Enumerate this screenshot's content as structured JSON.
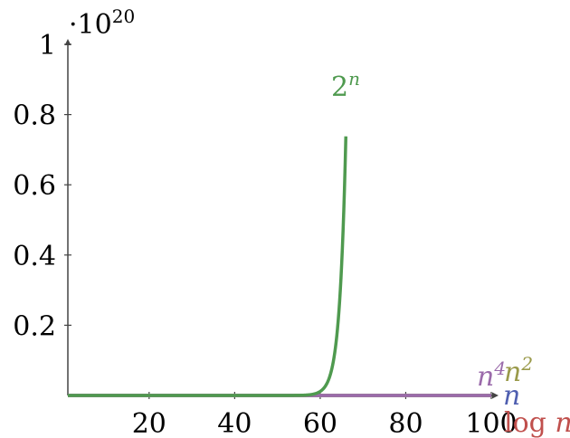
{
  "chart_data": {
    "type": "line",
    "title": "",
    "xlabel": "",
    "ylabel": "",
    "y_scale_label": "·10",
    "y_scale_exponent": "20",
    "xlim": [
      1,
      100
    ],
    "ylim": [
      0,
      1
    ],
    "x_ticks": [
      20,
      40,
      60,
      80,
      100
    ],
    "x_tick_labels": [
      "20",
      "40",
      "60",
      "80",
      "100"
    ],
    "y_ticks": [
      0.2,
      0.4,
      0.6,
      0.8,
      1
    ],
    "y_tick_labels": [
      "0.2",
      "0.4",
      "0.6",
      "0.8",
      "1"
    ],
    "grid": false,
    "legend": "none",
    "series": [
      {
        "name": "log n",
        "label_base": "log ",
        "label_var": "n",
        "label_sup": "",
        "color": "#c0504d",
        "formula": "log",
        "x_max": 100
      },
      {
        "name": "n",
        "label_base": "",
        "label_var": "n",
        "label_sup": "",
        "color": "#4f5fb0",
        "formula": "linear",
        "x_max": 100
      },
      {
        "name": "n^2",
        "label_base": "",
        "label_var": "n",
        "label_sup": "2",
        "color": "#9a9a4a",
        "formula": "square",
        "x_max": 100
      },
      {
        "name": "n^4",
        "label_base": "",
        "label_var": "n",
        "label_sup": "4",
        "color": "#9b6bab",
        "formula": "quartic",
        "x_max": 100
      },
      {
        "name": "2^n",
        "label_base": "2",
        "label_var": "",
        "label_sup": "n",
        "color": "#4f9a4f",
        "formula": "exp2",
        "x_max": 66
      }
    ]
  }
}
